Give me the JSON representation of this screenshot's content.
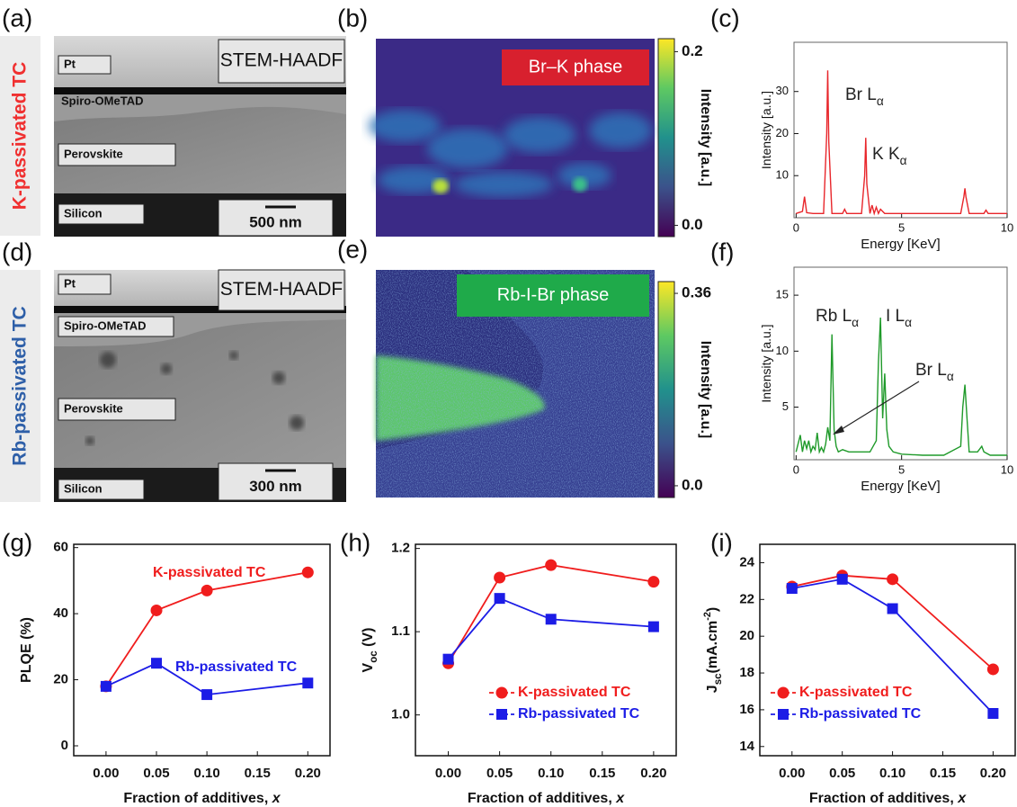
{
  "row_labels": [
    {
      "text": "K-passivated TC",
      "color": "#f03030"
    },
    {
      "text": "Rb-passivated TC",
      "color": "#2e5fa8"
    }
  ],
  "micrographs": [
    {
      "panel_label": "(a)",
      "labels": {
        "pt": "Pt",
        "technique": "STEM-HAADF",
        "htl": "Spiro-OMeTAD",
        "absorber": "Perovskite",
        "substrate": "Silicon"
      },
      "scalebar": "500 nm"
    },
    {
      "panel_label": "(d)",
      "labels": {
        "pt": "Pt",
        "technique": "STEM-HAADF",
        "htl": "Spiro-OMeTAD",
        "absorber": "Perovskite",
        "substrate": "Silicon"
      },
      "scalebar": "300 nm"
    }
  ],
  "maps": [
    {
      "panel_label": "(b)",
      "phase": "Br–K phase",
      "phase_color": "#d8202e",
      "colorbar": {
        "label": "Intensity [a.u.]",
        "lim": [
          -0.013,
          0.215
        ],
        "ticks": [
          {
            "value": 0,
            "label": "0.0"
          },
          {
            "value": 0.2,
            "label": "0.2"
          }
        ]
      }
    },
    {
      "panel_label": "(e)",
      "phase": "Rb-I-Br phase",
      "phase_color": "#1faa4a",
      "colorbar": {
        "label": "Intensity [a.u.]",
        "lim": [
          -0.022,
          0.382
        ],
        "ticks": [
          {
            "value": 0,
            "label": "0.0"
          },
          {
            "value": 0.36,
            "label": "0.36"
          }
        ]
      }
    }
  ],
  "chart_data": [
    {
      "type": "line",
      "panel_label": "(c)",
      "xlabel": [
        {
          "text": "Energy [KeV]"
        }
      ],
      "ylabel": [
        {
          "text": "Intensity [a.u.]"
        }
      ],
      "x": [
        0,
        0.3,
        0.4,
        0.5,
        0.8,
        1.3,
        1.45,
        1.5,
        1.55,
        1.7,
        2.2,
        2.3,
        2.4,
        3.1,
        3.25,
        3.3,
        3.35,
        3.5,
        3.6,
        3.7,
        3.8,
        3.9,
        4.0,
        4.2,
        7.8,
        7.95,
        8.0,
        8.05,
        8.2,
        8.9,
        9.0,
        9.1,
        10
      ],
      "values": [
        1,
        1.5,
        5,
        1.2,
        1,
        1,
        20,
        35,
        18,
        1,
        1,
        2,
        1,
        1,
        10,
        19,
        8,
        1,
        3,
        1,
        2.5,
        1,
        2,
        1,
        1,
        5,
        7,
        5,
        1,
        1,
        1.8,
        1,
        1
      ],
      "color": "#e8262b",
      "xlim": [
        -0.1,
        10
      ],
      "xticks": [
        0,
        5,
        10
      ],
      "ylim": [
        0,
        41.7
      ],
      "yticks": [
        10,
        20,
        30
      ],
      "annotations": [
        {
          "parts": [
            {
              "text": "Br L"
            },
            {
              "text": "α",
              "sub": true
            }
          ]
        },
        {
          "parts": [
            {
              "text": "K K"
            },
            {
              "text": "α",
              "sub": true
            }
          ]
        }
      ]
    },
    {
      "type": "line",
      "panel_label": "(f)",
      "xlabel": [
        {
          "text": "Energy [KeV]"
        }
      ],
      "ylabel": [
        {
          "text": "Intensity [a.u.]"
        }
      ],
      "x": [
        0,
        0.2,
        0.3,
        0.4,
        0.5,
        0.6,
        0.7,
        0.8,
        0.9,
        1.0,
        1.1,
        1.2,
        1.3,
        1.4,
        1.5,
        1.6,
        1.7,
        1.8,
        1.9,
        2.0,
        2.2,
        2.5,
        3.0,
        3.5,
        3.8,
        3.9,
        4.0,
        4.1,
        4.2,
        4.3,
        4.4,
        4.6,
        5.0,
        6,
        7,
        7.8,
        7.9,
        8.0,
        8.1,
        8.2,
        8.6,
        8.8,
        8.9,
        9.2,
        10
      ],
      "values": [
        1,
        2.5,
        1,
        2,
        1.3,
        2,
        1,
        1.5,
        1.2,
        2.7,
        1,
        1.4,
        1,
        1.7,
        3.2,
        2,
        11.5,
        3,
        1.5,
        1,
        1.2,
        1,
        1,
        1,
        2,
        9,
        13,
        4,
        8,
        3,
        1.5,
        1,
        0.8,
        0.7,
        0.7,
        1.5,
        5,
        7,
        4,
        1,
        1,
        1.5,
        1,
        0.7,
        0.7
      ],
      "color": "#1f9a2a",
      "xlim": [
        -0.1,
        10
      ],
      "xticks": [
        0,
        5,
        10
      ],
      "ylim": [
        0.3,
        17.5
      ],
      "yticks": [
        5,
        10,
        15
      ],
      "annotations": [
        {
          "parts": [
            {
              "text": "Rb L"
            },
            {
              "text": "α",
              "sub": true
            }
          ]
        },
        {
          "parts": [
            {
              "text": "I L"
            },
            {
              "text": "α",
              "sub": true
            }
          ]
        },
        {
          "parts": [
            {
              "text": "Br L"
            },
            {
              "text": "α",
              "sub": true
            }
          ]
        }
      ]
    },
    {
      "type": "line",
      "panel_label": "(g)",
      "xlabel": [
        {
          "text": "Fraction of additives, "
        },
        {
          "text": "x",
          "italic": true
        }
      ],
      "ylabel": [
        {
          "text": "PLQE (%)"
        }
      ],
      "x": [
        0,
        0.05,
        0.1,
        0.2
      ],
      "series": [
        {
          "name": "K-passivated TC",
          "color": "#f01d1d",
          "marker": "circle",
          "values": [
            18,
            41,
            47,
            52.5
          ]
        },
        {
          "name": "Rb-passivated TC",
          "color": "#1c1ce6",
          "marker": "square",
          "values": [
            18,
            25,
            15.5,
            19
          ]
        }
      ],
      "xlim": [
        -0.032,
        0.222
      ],
      "xticks": [
        {
          "value": 0,
          "label": "0.00"
        },
        {
          "value": 0.05,
          "label": "0.05"
        },
        {
          "value": 0.1,
          "label": "0.10"
        },
        {
          "value": 0.15,
          "label": "0.15"
        },
        {
          "value": 0.2,
          "label": "0.20"
        }
      ],
      "ylim": [
        -3,
        61
      ],
      "yticks": [
        0,
        20,
        40,
        60
      ],
      "legend": "inline"
    },
    {
      "type": "line",
      "panel_label": "(h)",
      "xlabel": [
        {
          "text": "Fraction of additives, "
        },
        {
          "text": "x",
          "italic": true
        }
      ],
      "ylabel": [
        {
          "text": "V"
        },
        {
          "text": "oc",
          "sub": true
        },
        {
          "text": " (V)"
        }
      ],
      "x": [
        0,
        0.05,
        0.1,
        0.2
      ],
      "series": [
        {
          "name": "K-passivated TC",
          "color": "#f01d1d",
          "marker": "circle",
          "values": [
            1.062,
            1.165,
            1.18,
            1.16
          ]
        },
        {
          "name": "Rb-passivated TC",
          "color": "#1c1ce6",
          "marker": "square",
          "values": [
            1.067,
            1.14,
            1.115,
            1.106
          ]
        }
      ],
      "xlim": [
        -0.032,
        0.222
      ],
      "xticks": [
        {
          "value": 0,
          "label": "0.00"
        },
        {
          "value": 0.05,
          "label": "0.05"
        },
        {
          "value": 0.1,
          "label": "0.10"
        },
        {
          "value": 0.15,
          "label": "0.15"
        },
        {
          "value": 0.2,
          "label": "0.20"
        }
      ],
      "ylim": [
        0.951,
        1.205
      ],
      "yticks": [
        {
          "value": 1,
          "label": "1.0"
        },
        {
          "value": 1.1,
          "label": "1.1"
        },
        {
          "value": 1.2,
          "label": "1.2"
        }
      ],
      "legend": "lower right"
    },
    {
      "type": "line",
      "panel_label": "(i)",
      "xlabel": [
        {
          "text": "Fraction of additives, "
        },
        {
          "text": "x",
          "italic": true
        }
      ],
      "ylabel": [
        {
          "text": "J"
        },
        {
          "text": "sc",
          "sub": true
        },
        {
          "text": "(mA.cm"
        },
        {
          "text": "-2",
          "sup": true
        },
        {
          "text": ")"
        }
      ],
      "x": [
        0,
        0.05,
        0.1,
        0.2
      ],
      "series": [
        {
          "name": "K-passivated TC",
          "color": "#f01d1d",
          "marker": "circle",
          "values": [
            22.7,
            23.3,
            23.1,
            18.2
          ]
        },
        {
          "name": "Rb-passivated TC",
          "color": "#1c1ce6",
          "marker": "square",
          "values": [
            22.6,
            23.1,
            21.5,
            15.8
          ]
        }
      ],
      "xlim": [
        -0.032,
        0.222
      ],
      "xticks": [
        {
          "value": 0,
          "label": "0.00"
        },
        {
          "value": 0.05,
          "label": "0.05"
        },
        {
          "value": 0.1,
          "label": "0.10"
        },
        {
          "value": 0.15,
          "label": "0.15"
        },
        {
          "value": 0.2,
          "label": "0.20"
        }
      ],
      "ylim": [
        13.5,
        25
      ],
      "yticks": [
        14,
        16,
        18,
        20,
        22,
        24
      ],
      "legend": "lower left"
    }
  ]
}
